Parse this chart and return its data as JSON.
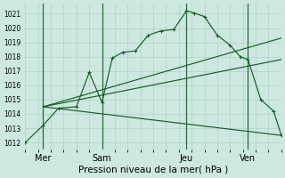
{
  "title": "Pression niveau de la mer( hPa )",
  "background_color": "#cce8e0",
  "grid_color": "#aaccc4",
  "line_color": "#1a5c2a",
  "vline_color": "#2a6a3a",
  "xlim": [
    0,
    10
  ],
  "ylim": [
    1011.5,
    1021.7
  ],
  "yticks": [
    1012,
    1013,
    1014,
    1015,
    1016,
    1017,
    1018,
    1019,
    1020,
    1021
  ],
  "ytick_fontsize": 5.5,
  "xtick_labels": [
    "Mer",
    "Sam",
    "Jeu",
    "Ven"
  ],
  "xtick_positions": [
    0.7,
    3.0,
    6.3,
    8.7
  ],
  "vlines": [
    0.7,
    3.0,
    6.3,
    8.7
  ],
  "series_main": {
    "x": [
      0.0,
      0.7,
      1.3,
      2.0,
      2.5,
      3.0,
      3.4,
      3.8,
      4.3,
      4.8,
      5.3,
      5.8,
      6.3,
      6.6,
      7.0,
      7.5,
      8.0,
      8.4,
      8.7,
      9.2,
      9.7,
      10.0
    ],
    "y": [
      1012.0,
      1013.2,
      1014.4,
      1014.5,
      1016.9,
      1014.8,
      1017.9,
      1018.3,
      1018.4,
      1019.5,
      1019.8,
      1019.9,
      1021.2,
      1021.05,
      1020.8,
      1019.5,
      1018.8,
      1018.0,
      1017.8,
      1015.0,
      1014.2,
      1012.5
    ]
  },
  "series_lines": [
    {
      "x": [
        0.7,
        10.0
      ],
      "y": [
        1014.5,
        1019.3
      ]
    },
    {
      "x": [
        0.7,
        10.0
      ],
      "y": [
        1014.5,
        1017.8
      ]
    },
    {
      "x": [
        0.7,
        10.0
      ],
      "y": [
        1014.5,
        1012.5
      ]
    }
  ]
}
